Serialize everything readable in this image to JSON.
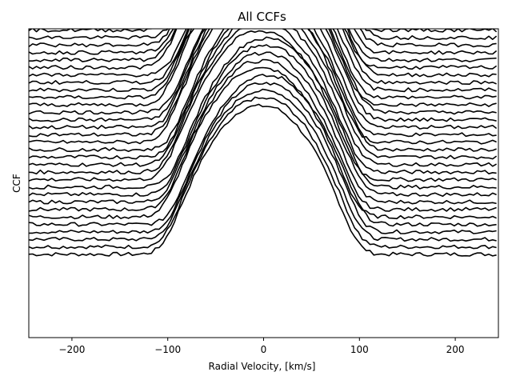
{
  "chart_data": {
    "type": "line",
    "title": "All CCFs",
    "xlabel": "Radial Velocity, [km/s]",
    "ylabel": "CCF",
    "xlim": [
      -245,
      245
    ],
    "xticks": [
      -200,
      -100,
      0,
      100,
      200
    ],
    "xtick_labels": [
      "−200",
      "−100",
      "0",
      "100",
      "200"
    ],
    "y_ticks_shown": false,
    "grid": false,
    "legend": "none",
    "series_color": "#000000",
    "n_series": 36,
    "x": [
      -245,
      -225,
      -205,
      -185,
      -165,
      -145,
      -125,
      -115,
      -105,
      -95,
      -85,
      -75,
      -65,
      -55,
      -45,
      -35,
      -25,
      -15,
      -5,
      5,
      15,
      25,
      35,
      45,
      55,
      65,
      75,
      85,
      95,
      105,
      115,
      125,
      135,
      145,
      165,
      185,
      205,
      225,
      245
    ],
    "profile": [
      0,
      0,
      0,
      0,
      0,
      0,
      0,
      0.01,
      0.05,
      0.15,
      0.3,
      0.45,
      0.59,
      0.71,
      0.81,
      0.89,
      0.95,
      0.99,
      1,
      1,
      0.99,
      0.95,
      0.89,
      0.81,
      0.71,
      0.59,
      0.45,
      0.3,
      0.15,
      0.05,
      0.01,
      0,
      0,
      0,
      0,
      0,
      0,
      0,
      0
    ],
    "line_depth": 0.48,
    "continuum_first": 0.27,
    "continuum_step": 0.0242,
    "noise_amplitude": 0.006
  }
}
